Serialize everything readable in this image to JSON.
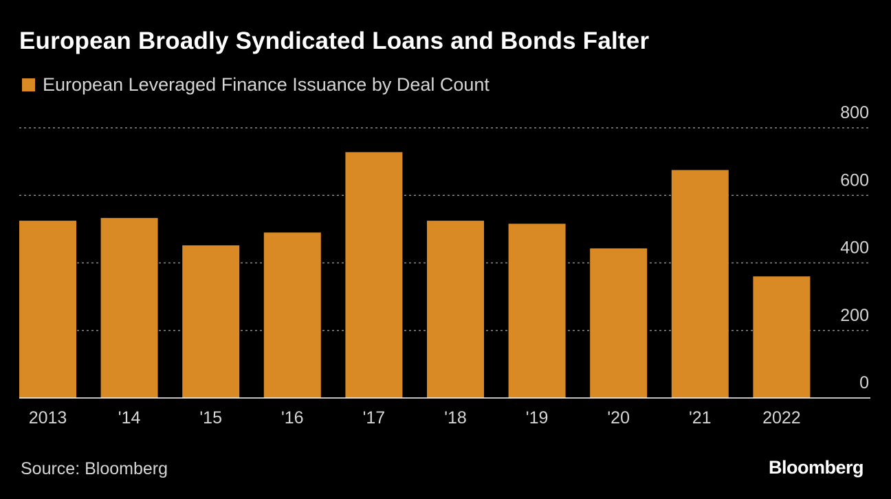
{
  "title": "European Broadly Syndicated Loans and Bonds Falter",
  "legend": {
    "label": "European Leveraged Finance Issuance by Deal Count",
    "color": "#d98a25"
  },
  "source": "Source: Bloomberg",
  "brand": "Bloomberg",
  "chart_data": {
    "type": "bar",
    "categories": [
      "2013",
      "'14",
      "'15",
      "'16",
      "'17",
      "'18",
      "'19",
      "'20",
      "'21",
      "2022"
    ],
    "series": [
      {
        "name": "European Leveraged Finance Issuance by Deal Count",
        "values": [
          525,
          533,
          452,
          490,
          728,
          525,
          516,
          443,
          675,
          360
        ]
      }
    ],
    "ylim": [
      0,
      800
    ],
    "yticks": [
      0,
      200,
      400,
      600,
      800
    ],
    "ytick_labels": [
      "0",
      "200",
      "400",
      "600",
      "800"
    ],
    "grid": true,
    "y_axis_position": "right",
    "bar_color": "#d98a25",
    "grid_color": "#8a8a8a",
    "axis_color": "#ffffff"
  }
}
